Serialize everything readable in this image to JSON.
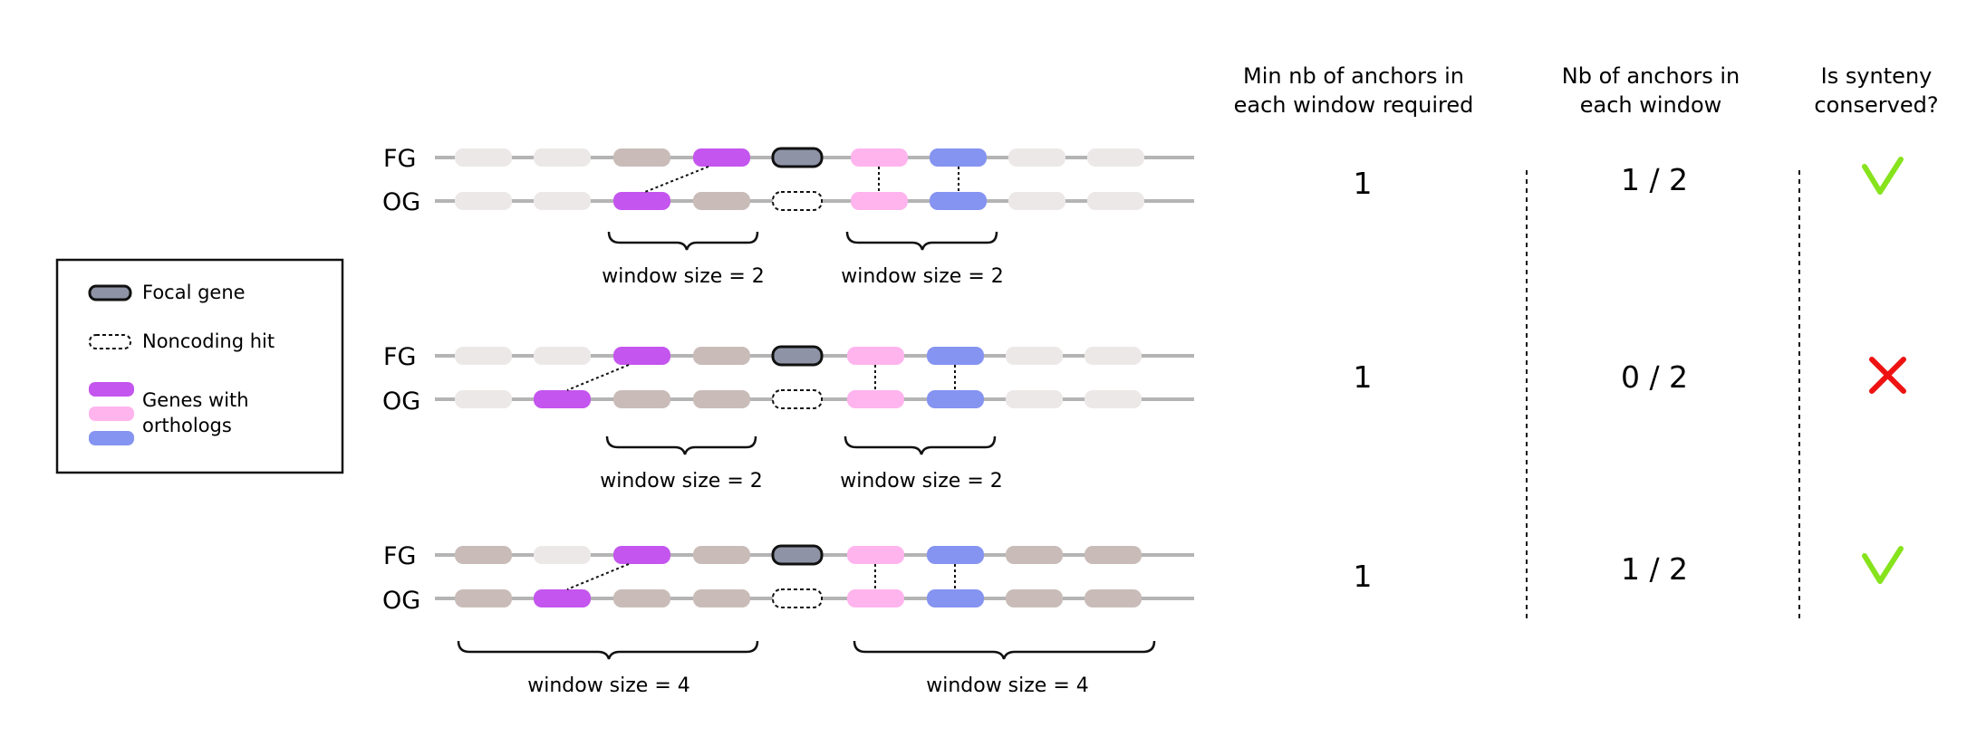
{
  "legend": {
    "focal_gene": "Focal gene",
    "noncoding_hit": "Noncoding hit",
    "orthologs_line1": "Genes with",
    "orthologs_line2": "orthologs"
  },
  "row_labels": {
    "fg": "FG",
    "og": "OG"
  },
  "headers": {
    "min_anchors": [
      "Min nb of anchors in",
      "each window required"
    ],
    "nb_anchors": [
      "Nb of anchors in",
      "each window"
    ],
    "conserved": [
      "Is synteny",
      "conserved?"
    ]
  },
  "scenarios": [
    {
      "window_labels": [
        "window size = 2",
        "window size = 2"
      ],
      "min_anchors": "1",
      "nb_anchors": "1 / 2",
      "conserved": true
    },
    {
      "window_labels": [
        "window size = 2",
        "window size = 2"
      ],
      "min_anchors": "1",
      "nb_anchors": "0 / 2",
      "conserved": false
    },
    {
      "window_labels": [
        "window size = 4",
        "window size = 4"
      ],
      "min_anchors": "1",
      "nb_anchors": "1 / 2",
      "conserved": true
    }
  ],
  "colors": {
    "chromosome_line": "#b4b4b4",
    "gene_light": "#ece8e7",
    "gene_tan": "#c9bcb8",
    "gene_purple": "#c455ee",
    "gene_pink": "#ffb4ee",
    "gene_blue": "#8593f1",
    "focal_fill": "#8e94a6",
    "check": "#86e31c",
    "cross": "#ee1212"
  }
}
